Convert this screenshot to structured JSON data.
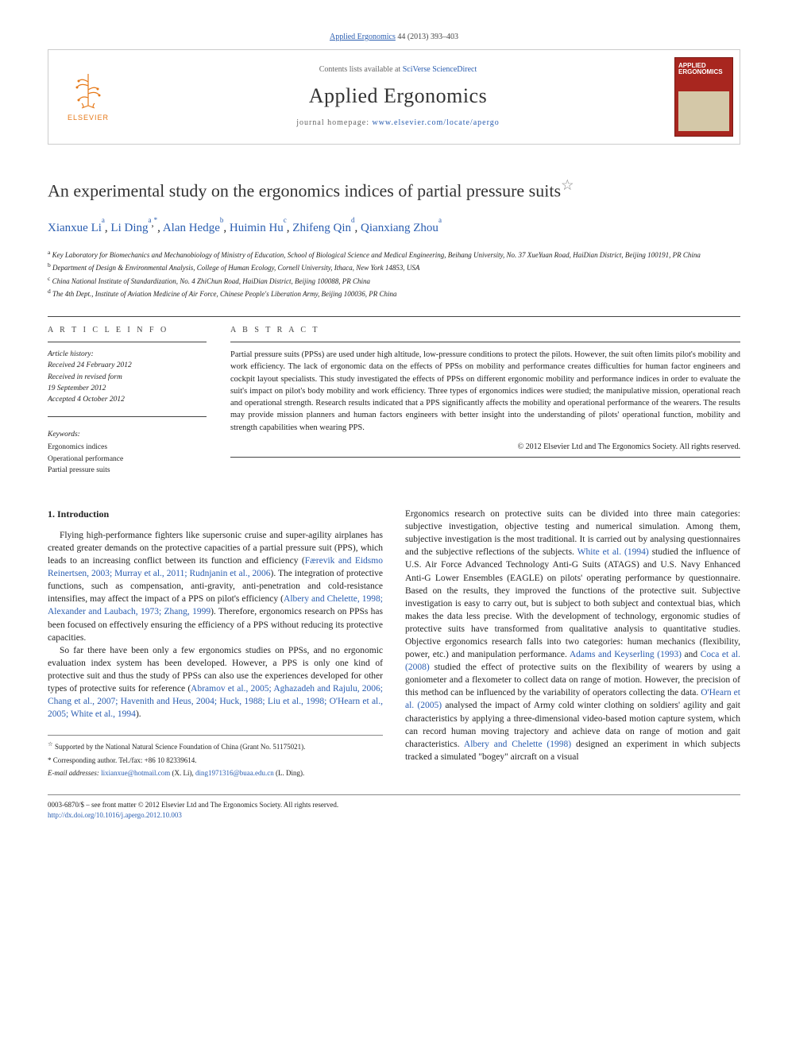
{
  "running_head": {
    "journal_link": "Applied Ergonomics",
    "citation": " 44 (2013) 393–403"
  },
  "masthead": {
    "elsevier_label": "ELSEVIER",
    "contents_prefix": "Contents lists available at ",
    "contents_link": "SciVerse ScienceDirect",
    "journal_name": "Applied Ergonomics",
    "homepage_prefix": "journal homepage: ",
    "homepage_url": "www.elsevier.com/locate/apergo",
    "cover_title": "APPLIED ERGONOMICS"
  },
  "title": "An experimental study on the ergonomics indices of partial pressure suits",
  "title_note_sym": "☆",
  "authors": [
    {
      "name": "Xianxue Li",
      "affs": "a"
    },
    {
      "name": "Li Ding",
      "affs": "a,*"
    },
    {
      "name": "Alan Hedge",
      "affs": "b"
    },
    {
      "name": "Huimin Hu",
      "affs": "c"
    },
    {
      "name": "Zhifeng Qin",
      "affs": "d"
    },
    {
      "name": "Qianxiang Zhou",
      "affs": "a"
    }
  ],
  "affiliations": [
    {
      "key": "a",
      "text": "Key Laboratory for Biomechanics and Mechanobiology of Ministry of Education, School of Biological Science and Medical Engineering, Beihang University, No. 37 XueYuan Road, HaiDian District, Beijing 100191, PR China"
    },
    {
      "key": "b",
      "text": "Department of Design & Environmental Analysis, College of Human Ecology, Cornell University, Ithaca, New York 14853, USA"
    },
    {
      "key": "c",
      "text": "China National Institute of Standardization, No. 4 ZhiChun Road, HaiDian District, Beijing 100088, PR China"
    },
    {
      "key": "d",
      "text": "The 4th Dept., Institute of Aviation Medicine of Air Force, Chinese People's Liberation Army, Beijing 100036, PR China"
    }
  ],
  "info": {
    "heading": "A R T I C L E   I N F O",
    "history_label": "Article history:",
    "history": [
      "Received 24 February 2012",
      "Received in revised form",
      "19 September 2012",
      "Accepted 4 October 2012"
    ],
    "keywords_label": "Keywords:",
    "keywords": [
      "Ergonomics indices",
      "Operational performance",
      "Partial pressure suits"
    ]
  },
  "abstract": {
    "heading": "A B S T R A C T",
    "text": "Partial pressure suits (PPSs) are used under high altitude, low-pressure conditions to protect the pilots. However, the suit often limits pilot's mobility and work efficiency. The lack of ergonomic data on the effects of PPSs on mobility and performance creates difficulties for human factor engineers and cockpit layout specialists. This study investigated the effects of PPSs on different ergonomic mobility and performance indices in order to evaluate the suit's impact on pilot's body mobility and work efficiency. Three types of ergonomics indices were studied; the manipulative mission, operational reach and operational strength. Research results indicated that a PPS significantly affects the mobility and operational performance of the wearers. The results may provide mission planners and human factors engineers with better insight into the understanding of pilots' operational function, mobility and strength capabilities when wearing PPS.",
    "copyright": "© 2012 Elsevier Ltd and The Ergonomics Society. All rights reserved."
  },
  "body": {
    "sec1_heading": "1.  Introduction",
    "p1_a": "Flying high-performance fighters like supersonic cruise and super-agility airplanes has created greater demands on the protective capacities of a partial pressure suit (PPS), which leads to an increasing conflict between its function and efficiency (",
    "p1_ref1": "Færevik and Eidsmo Reinertsen, 2003; Murray et al., 2011; Rudnjanin et al., 2006",
    "p1_b": "). The integration of protective functions, such as compensation, anti-gravity, anti-penetration and cold-resistance intensifies, may affect the impact of a PPS on pilot's efficiency (",
    "p1_ref2": "Albery and Chelette, 1998; Alexander and Laubach, 1973; Zhang, 1999",
    "p1_c": "). Therefore, ergonomics research on PPSs has been focused on effectively ensuring the efficiency of a PPS without reducing its protective capacities.",
    "p2_a": "So far there have been only a few ergonomics studies on PPSs, and no ergonomic evaluation index system has been developed. However, a PPS is only one kind of protective suit and thus the study of PPSs can also use the experiences developed for other types of protective suits for reference (",
    "p2_ref1": "Abramov et al., 2005; Aghazadeh and Rajulu, 2006; Chang et al., 2007; Havenith and Heus, 2004; Huck, 1988; Liu et al., 1998; O'Hearn et al., 2005; White et al., 1994",
    "p2_b": ").",
    "p3_a": "Ergonomics research on protective suits can be divided into three main categories: subjective investigation, objective testing and numerical simulation. Among them, subjective investigation is the most traditional. It is carried out by analysing questionnaires and the subjective reflections of the subjects. ",
    "p3_ref1": "White et al. (1994)",
    "p3_b": " studied the influence of U.S. Air Force Advanced Technology Anti-G Suits (ATAGS) and U.S. Navy Enhanced Anti-G Lower Ensembles (EAGLE) on pilots' operating performance by questionnaire. Based on the results, they improved the functions of the protective suit. Subjective investigation is easy to carry out, but is subject to both subject and contextual bias, which makes the data less precise. With the development of technology, ergonomic studies of protective suits have transformed from qualitative analysis to quantitative studies. Objective ergonomics research falls into two categories: human mechanics (flexibility, power, etc.) and manipulation performance. ",
    "p3_ref2": "Adams and Keyserling (1993)",
    "p3_c": " and ",
    "p3_ref3": "Coca et al. (2008)",
    "p3_d": " studied the effect of protective suits on the flexibility of wearers by using a goniometer and a flexometer to collect data on range of motion. However, the precision of this method can be influenced by the variability of operators collecting the data. ",
    "p3_ref4": "O'Hearn et al. (2005)",
    "p3_e": " analysed the impact of Army cold winter clothing on soldiers' agility and gait characteristics by applying a three-dimensional video-based motion capture system, which can record human moving trajectory and achieve data on range of motion and gait characteristics. ",
    "p3_ref5": "Albery and Chelette (1998)",
    "p3_f": " designed an experiment in which subjects tracked a simulated \"bogey\" aircraft on a visual"
  },
  "footnotes": {
    "funding_sym": "☆",
    "funding": " Supported by the National Natural Science Foundation of China (Grant No. 51175021).",
    "corr_sym": "*",
    "corr": " Corresponding author. Tel./fax: +86 10 82339614.",
    "email_label": "E-mail addresses: ",
    "email1": "lixianxue@hotmail.com",
    "email1_who": " (X. Li), ",
    "email2": "ding1971316@buaa.edu.cn",
    "email2_who": " (L. Ding)."
  },
  "bottom": {
    "line1": "0003-6870/$ – see front matter © 2012 Elsevier Ltd and The Ergonomics Society. All rights reserved.",
    "doi": "http://dx.doi.org/10.1016/j.apergo.2012.10.003"
  },
  "colors": {
    "link": "#2a5db0",
    "elsevier_orange": "#e67817",
    "cover_red": "#a8261f"
  }
}
